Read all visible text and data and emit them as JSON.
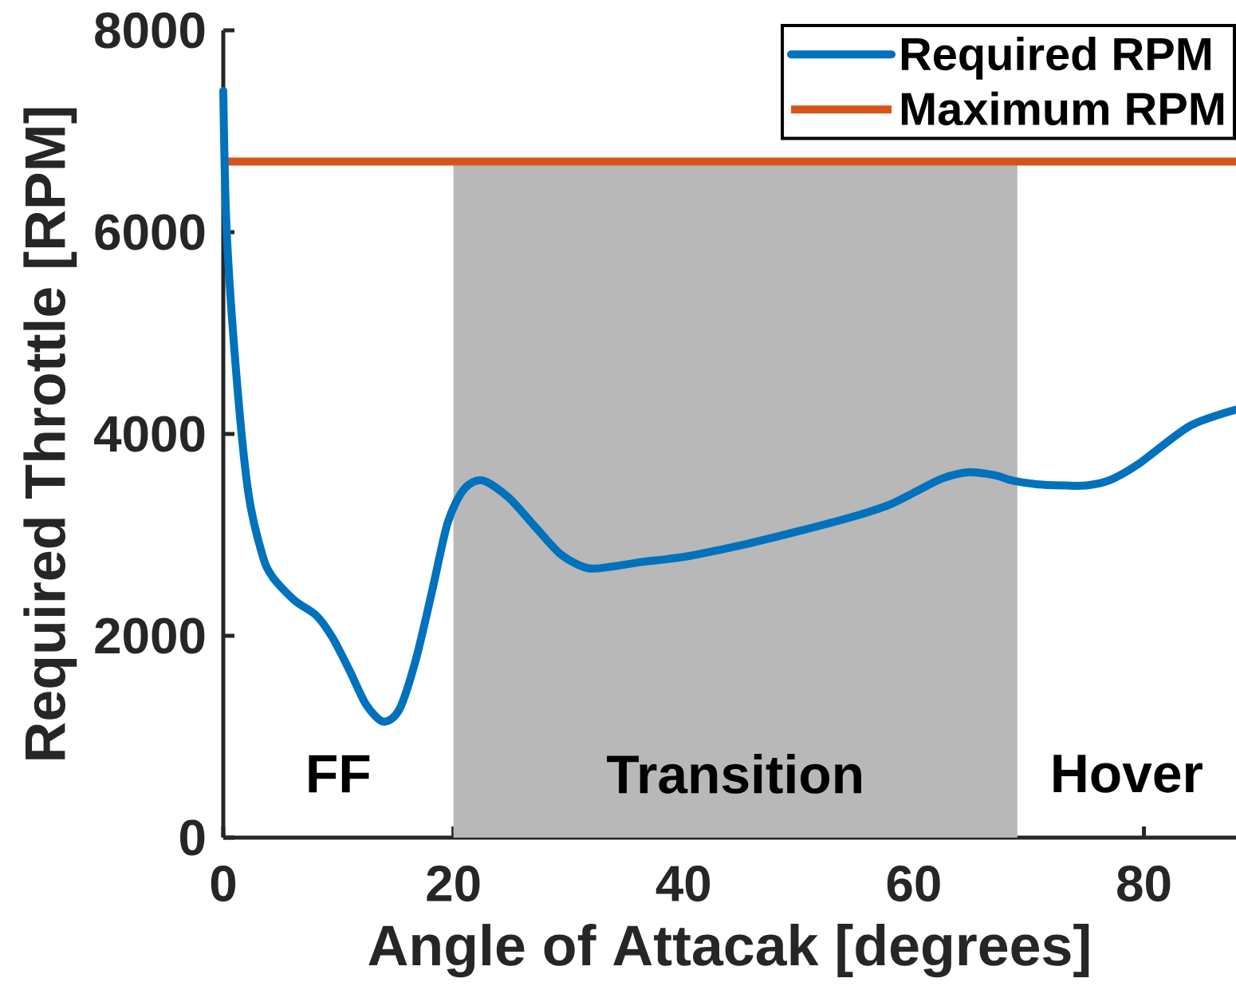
{
  "chart_data": {
    "type": "line",
    "xlabel": "Angle of Attacak [degrees]",
    "ylabel": "Required Throttle [RPM]",
    "xlim": [
      0,
      88
    ],
    "xticks": [
      0,
      20,
      40,
      60,
      80
    ],
    "ylim": [
      0,
      8000
    ],
    "yticks": [
      0,
      2000,
      4000,
      6000,
      8000
    ],
    "x": [
      0,
      0.3,
      1.2,
      2.2,
      3.4,
      4.3,
      6.2,
      8.1,
      9.5,
      11,
      12.4,
      13.9,
      15.3,
      16.7,
      18.1,
      19.5,
      20.9,
      22.5,
      24.8,
      27.1,
      29.4,
      31.7,
      34,
      36.3,
      38.6,
      40.9,
      45.5,
      50.1,
      54.7,
      57.9,
      60.2,
      62.5,
      64.8,
      67.1,
      68.5,
      70.8,
      73.1,
      75,
      77,
      79.5,
      84,
      88
    ],
    "series": [
      {
        "name": "Required RPM",
        "color": "#0072bd",
        "values": [
          7400,
          6000,
          4500,
          3400,
          2800,
          2580,
          2350,
          2200,
          1980,
          1650,
          1320,
          1150,
          1270,
          1750,
          2420,
          3120,
          3450,
          3540,
          3370,
          3080,
          2800,
          2670,
          2690,
          2730,
          2760,
          2800,
          2910,
          3040,
          3180,
          3300,
          3430,
          3560,
          3620,
          3590,
          3540,
          3500,
          3490,
          3490,
          3540,
          3700,
          4080,
          4240
        ]
      }
    ],
    "ref_lines": [
      {
        "axis": "y",
        "value": 6700,
        "label": "Maximum RPM",
        "color": "#d95319"
      }
    ],
    "bands": [
      {
        "axis": "x",
        "from": 20,
        "to": 69,
        "label": "Transition",
        "color": "#b8b8b8"
      }
    ],
    "annotations": [
      "FF",
      "Hover"
    ],
    "legend": "top right"
  }
}
